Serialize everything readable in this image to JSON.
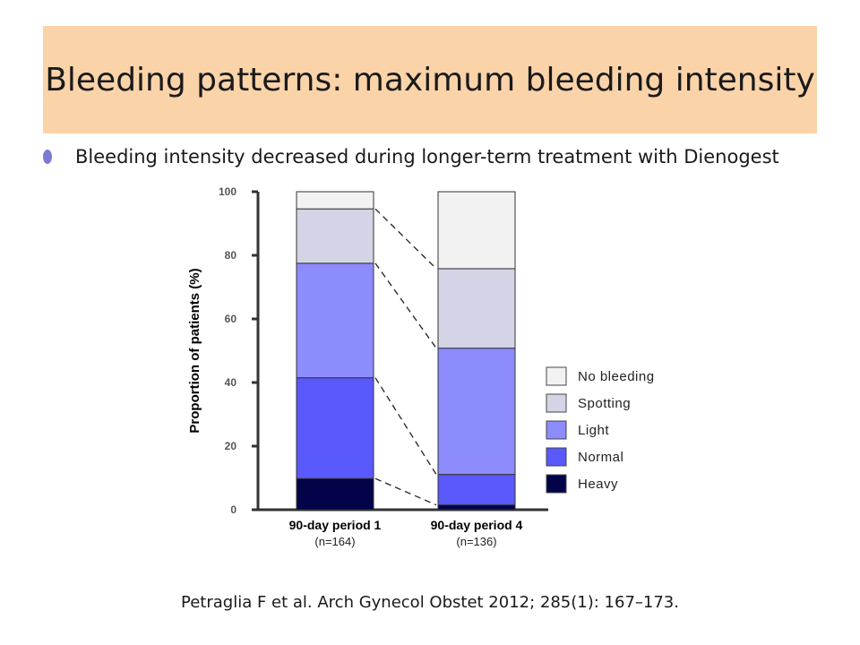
{
  "slide": {
    "title": "Bleeding patterns: maximum bleeding intensity",
    "bullet": "Bleeding intensity decreased during longer-term treatment with Dienogest",
    "footer": "Petraglia F et al. Arch Gynecol Obstet 2012; 285(1): 167–173."
  },
  "colors": {
    "title_band": "#fad3a9",
    "bullet": "#7a7ad0",
    "no_bleeding": "#f2f2f2",
    "spotting": "#d3d5e6",
    "light": "#8c8cfc",
    "normal": "#5959fc",
    "heavy": "#03034a"
  },
  "chart_data": {
    "type": "bar",
    "stacked": true,
    "ylabel": "Proportion of patients (%)",
    "ylim": [
      0,
      100
    ],
    "yticks": [
      0,
      20,
      40,
      60,
      80,
      100
    ],
    "categories": [
      {
        "label": "90-day period 1",
        "sublabel": "(n=164)"
      },
      {
        "label": "90-day period 4",
        "sublabel": "(n=136)"
      }
    ],
    "series": [
      {
        "name": "Heavy",
        "color": "#03034a",
        "values": [
          9.8,
          1.5
        ]
      },
      {
        "name": "Normal",
        "color": "#5959fc",
        "values": [
          31.7,
          9.6
        ]
      },
      {
        "name": "Light",
        "color": "#8c8cfc",
        "values": [
          36.0,
          39.7
        ]
      },
      {
        "name": "Spotting",
        "color": "#d3d5e6",
        "values": [
          17.1,
          25.0
        ]
      },
      {
        "name": "No bleeding",
        "color": "#f2f2f2",
        "values": [
          5.4,
          24.2
        ]
      }
    ],
    "legend_order": [
      "No bleeding",
      "Spotting",
      "Light",
      "Normal",
      "Heavy"
    ],
    "legend_position": "right",
    "connector_lines": "dashed",
    "grid": false
  }
}
